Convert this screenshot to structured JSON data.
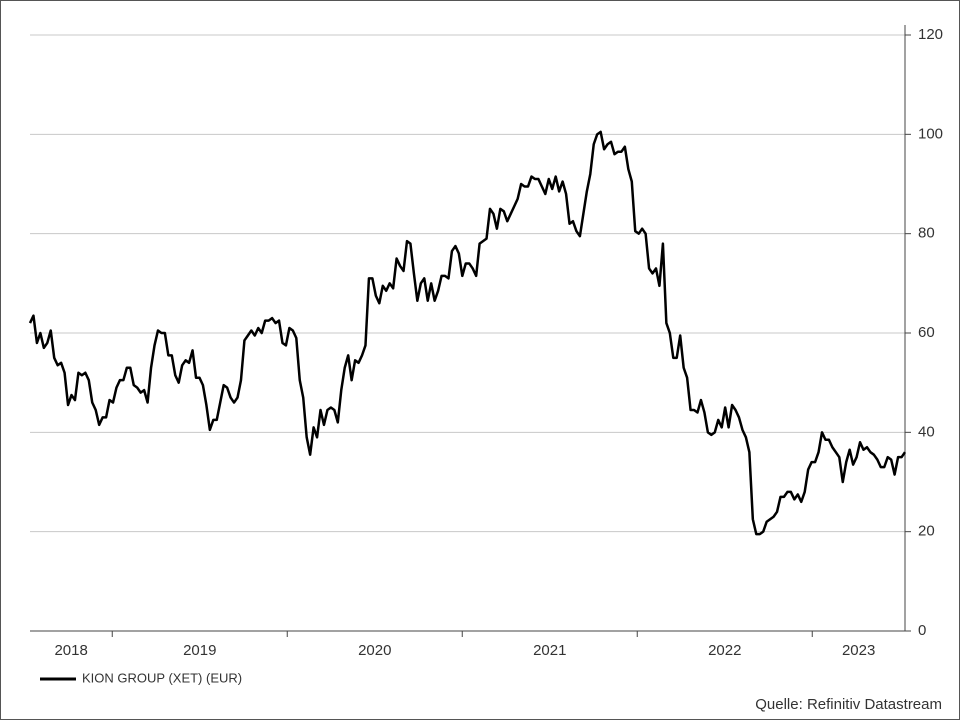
{
  "chart_data": {
    "type": "line",
    "series": [
      {
        "name": "KION GROUP (XET) (EUR)",
        "color": "#000000",
        "values": [
          62,
          63.5,
          58,
          60,
          57,
          58,
          60.5,
          55,
          53.5,
          54,
          52,
          45.5,
          47.5,
          46.5,
          52,
          51.5,
          52,
          50.5,
          46,
          44.5,
          41.5,
          43,
          43,
          46.5,
          46,
          49,
          50.5,
          50.5,
          53,
          53,
          49.5,
          49,
          48,
          48.5,
          46,
          53,
          57.5,
          60.5,
          60,
          60,
          55.5,
          55.5,
          51.5,
          50,
          53.5,
          54.5,
          54,
          56.5,
          51,
          51,
          49.5,
          45.5,
          40.5,
          42.5,
          42.5,
          46,
          49.5,
          49,
          47,
          46,
          47,
          50.5,
          58.5,
          59.5,
          60.5,
          59.5,
          61,
          60,
          62.5,
          62.5,
          63,
          62,
          62.5,
          58,
          57.5,
          61,
          60.5,
          59,
          50.5,
          47,
          39,
          35.5,
          41,
          39,
          44.5,
          41.5,
          44.5,
          45,
          44.5,
          42,
          48.5,
          53,
          55.5,
          50.5,
          54.5,
          54,
          55.5,
          57.5,
          71,
          71,
          67.5,
          66,
          69.5,
          68.5,
          70,
          69,
          75,
          73.5,
          72.5,
          78.5,
          78,
          72,
          66.5,
          70,
          71,
          66.5,
          70,
          66.5,
          68.5,
          71.5,
          71.5,
          71,
          76.5,
          77.5,
          76,
          71.5,
          74,
          74,
          73,
          71.5,
          78,
          78.5,
          79,
          85,
          84,
          81,
          85,
          84.5,
          82.5,
          84,
          85.5,
          87,
          90,
          89.5,
          89.5,
          91.5,
          91,
          91,
          89.5,
          88,
          91,
          89,
          91.5,
          88.5,
          90.5,
          88,
          82,
          82.5,
          80.5,
          79.5,
          84,
          88.5,
          92,
          98,
          100,
          100.5,
          97,
          98,
          98.5,
          96,
          96.5,
          96.5,
          97.5,
          93,
          90.5,
          80.5,
          80,
          81,
          80,
          73,
          72,
          73,
          69.5,
          78,
          62,
          60,
          55,
          55,
          59.5,
          53,
          51,
          44.5,
          44.5,
          44,
          46.5,
          44,
          40,
          39.5,
          40,
          42.5,
          41,
          45,
          41,
          45.5,
          44.5,
          43,
          40.5,
          39,
          36,
          22.5,
          19.5,
          19.5,
          20,
          22,
          22.5,
          23,
          24,
          27,
          27,
          28,
          28,
          26.5,
          27.5,
          26,
          28,
          32.5,
          34,
          34,
          36,
          40,
          38.5,
          38.5,
          37,
          36,
          35,
          30,
          34,
          36.5,
          33.5,
          35,
          38,
          36.5,
          37,
          36,
          35.5,
          34.5,
          33,
          33,
          35,
          34.5,
          31.5,
          35,
          35,
          36
        ]
      }
    ],
    "xlim": [
      2018.53,
      2023.53
    ],
    "xticks": [
      2018,
      2019,
      2020,
      2021,
      2022,
      2023
    ],
    "ylim": [
      0,
      120
    ],
    "yticks": [
      0,
      20,
      40,
      60,
      80,
      100,
      120
    ],
    "grid": true,
    "source": "Quelle: Refinitiv Datastream"
  }
}
